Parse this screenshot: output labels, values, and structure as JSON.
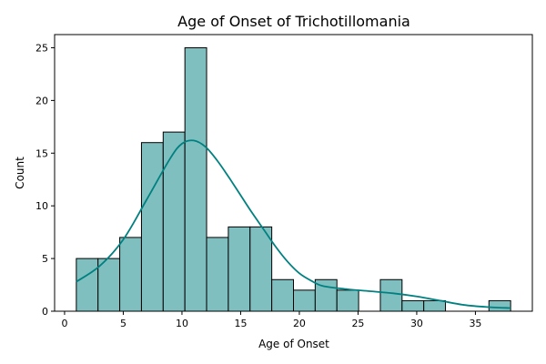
{
  "chart_data": {
    "type": "bar",
    "title": "Age of Onset of Trichotillomania",
    "xlabel": "Age of Onset",
    "ylabel": "Count",
    "xlim": [
      -0.85,
      39.85
    ],
    "ylim": [
      0,
      26.25
    ],
    "xticks": [
      0,
      5,
      10,
      15,
      20,
      25,
      30,
      35
    ],
    "yticks": [
      0,
      5,
      10,
      15,
      20,
      25
    ],
    "bar_color": "#80bfbf",
    "bar_edge_color": "#000000",
    "curve_color": "#008080",
    "grid": false,
    "bins": [
      {
        "x0": 1.0,
        "x1": 2.85,
        "count": 5
      },
      {
        "x0": 2.85,
        "x1": 4.7,
        "count": 5
      },
      {
        "x0": 4.7,
        "x1": 6.55,
        "count": 7
      },
      {
        "x0": 6.55,
        "x1": 8.4,
        "count": 16
      },
      {
        "x0": 8.4,
        "x1": 10.25,
        "count": 17
      },
      {
        "x0": 10.25,
        "x1": 12.1,
        "count": 25
      },
      {
        "x0": 12.1,
        "x1": 13.95,
        "count": 7
      },
      {
        "x0": 13.95,
        "x1": 15.8,
        "count": 8
      },
      {
        "x0": 15.8,
        "x1": 17.65,
        "count": 8
      },
      {
        "x0": 17.65,
        "x1": 19.5,
        "count": 3
      },
      {
        "x0": 19.5,
        "x1": 21.35,
        "count": 2
      },
      {
        "x0": 21.35,
        "x1": 23.2,
        "count": 3
      },
      {
        "x0": 23.2,
        "x1": 25.05,
        "count": 2
      },
      {
        "x0": 25.05,
        "x1": 26.9,
        "count": 0
      },
      {
        "x0": 26.9,
        "x1": 28.75,
        "count": 3
      },
      {
        "x0": 28.75,
        "x1": 30.6,
        "count": 1
      },
      {
        "x0": 30.6,
        "x1": 32.45,
        "count": 1
      },
      {
        "x0": 32.45,
        "x1": 34.3,
        "count": 0
      },
      {
        "x0": 34.3,
        "x1": 36.15,
        "count": 0
      },
      {
        "x0": 36.15,
        "x1": 38.0,
        "count": 1
      }
    ],
    "kde": {
      "x": [
        1,
        3,
        5,
        7,
        9,
        10,
        11,
        12,
        13,
        14,
        15,
        16,
        17,
        18,
        19,
        20,
        21,
        22,
        24,
        26,
        28,
        30,
        32,
        34,
        36,
        38
      ],
      "y": [
        2.8,
        4.3,
        6.8,
        10.6,
        14.5,
        15.9,
        16.2,
        15.6,
        14.3,
        12.7,
        11.0,
        9.3,
        7.7,
        6.1,
        4.7,
        3.6,
        2.9,
        2.4,
        2.1,
        1.9,
        1.7,
        1.4,
        1.0,
        0.6,
        0.4,
        0.3
      ]
    }
  }
}
